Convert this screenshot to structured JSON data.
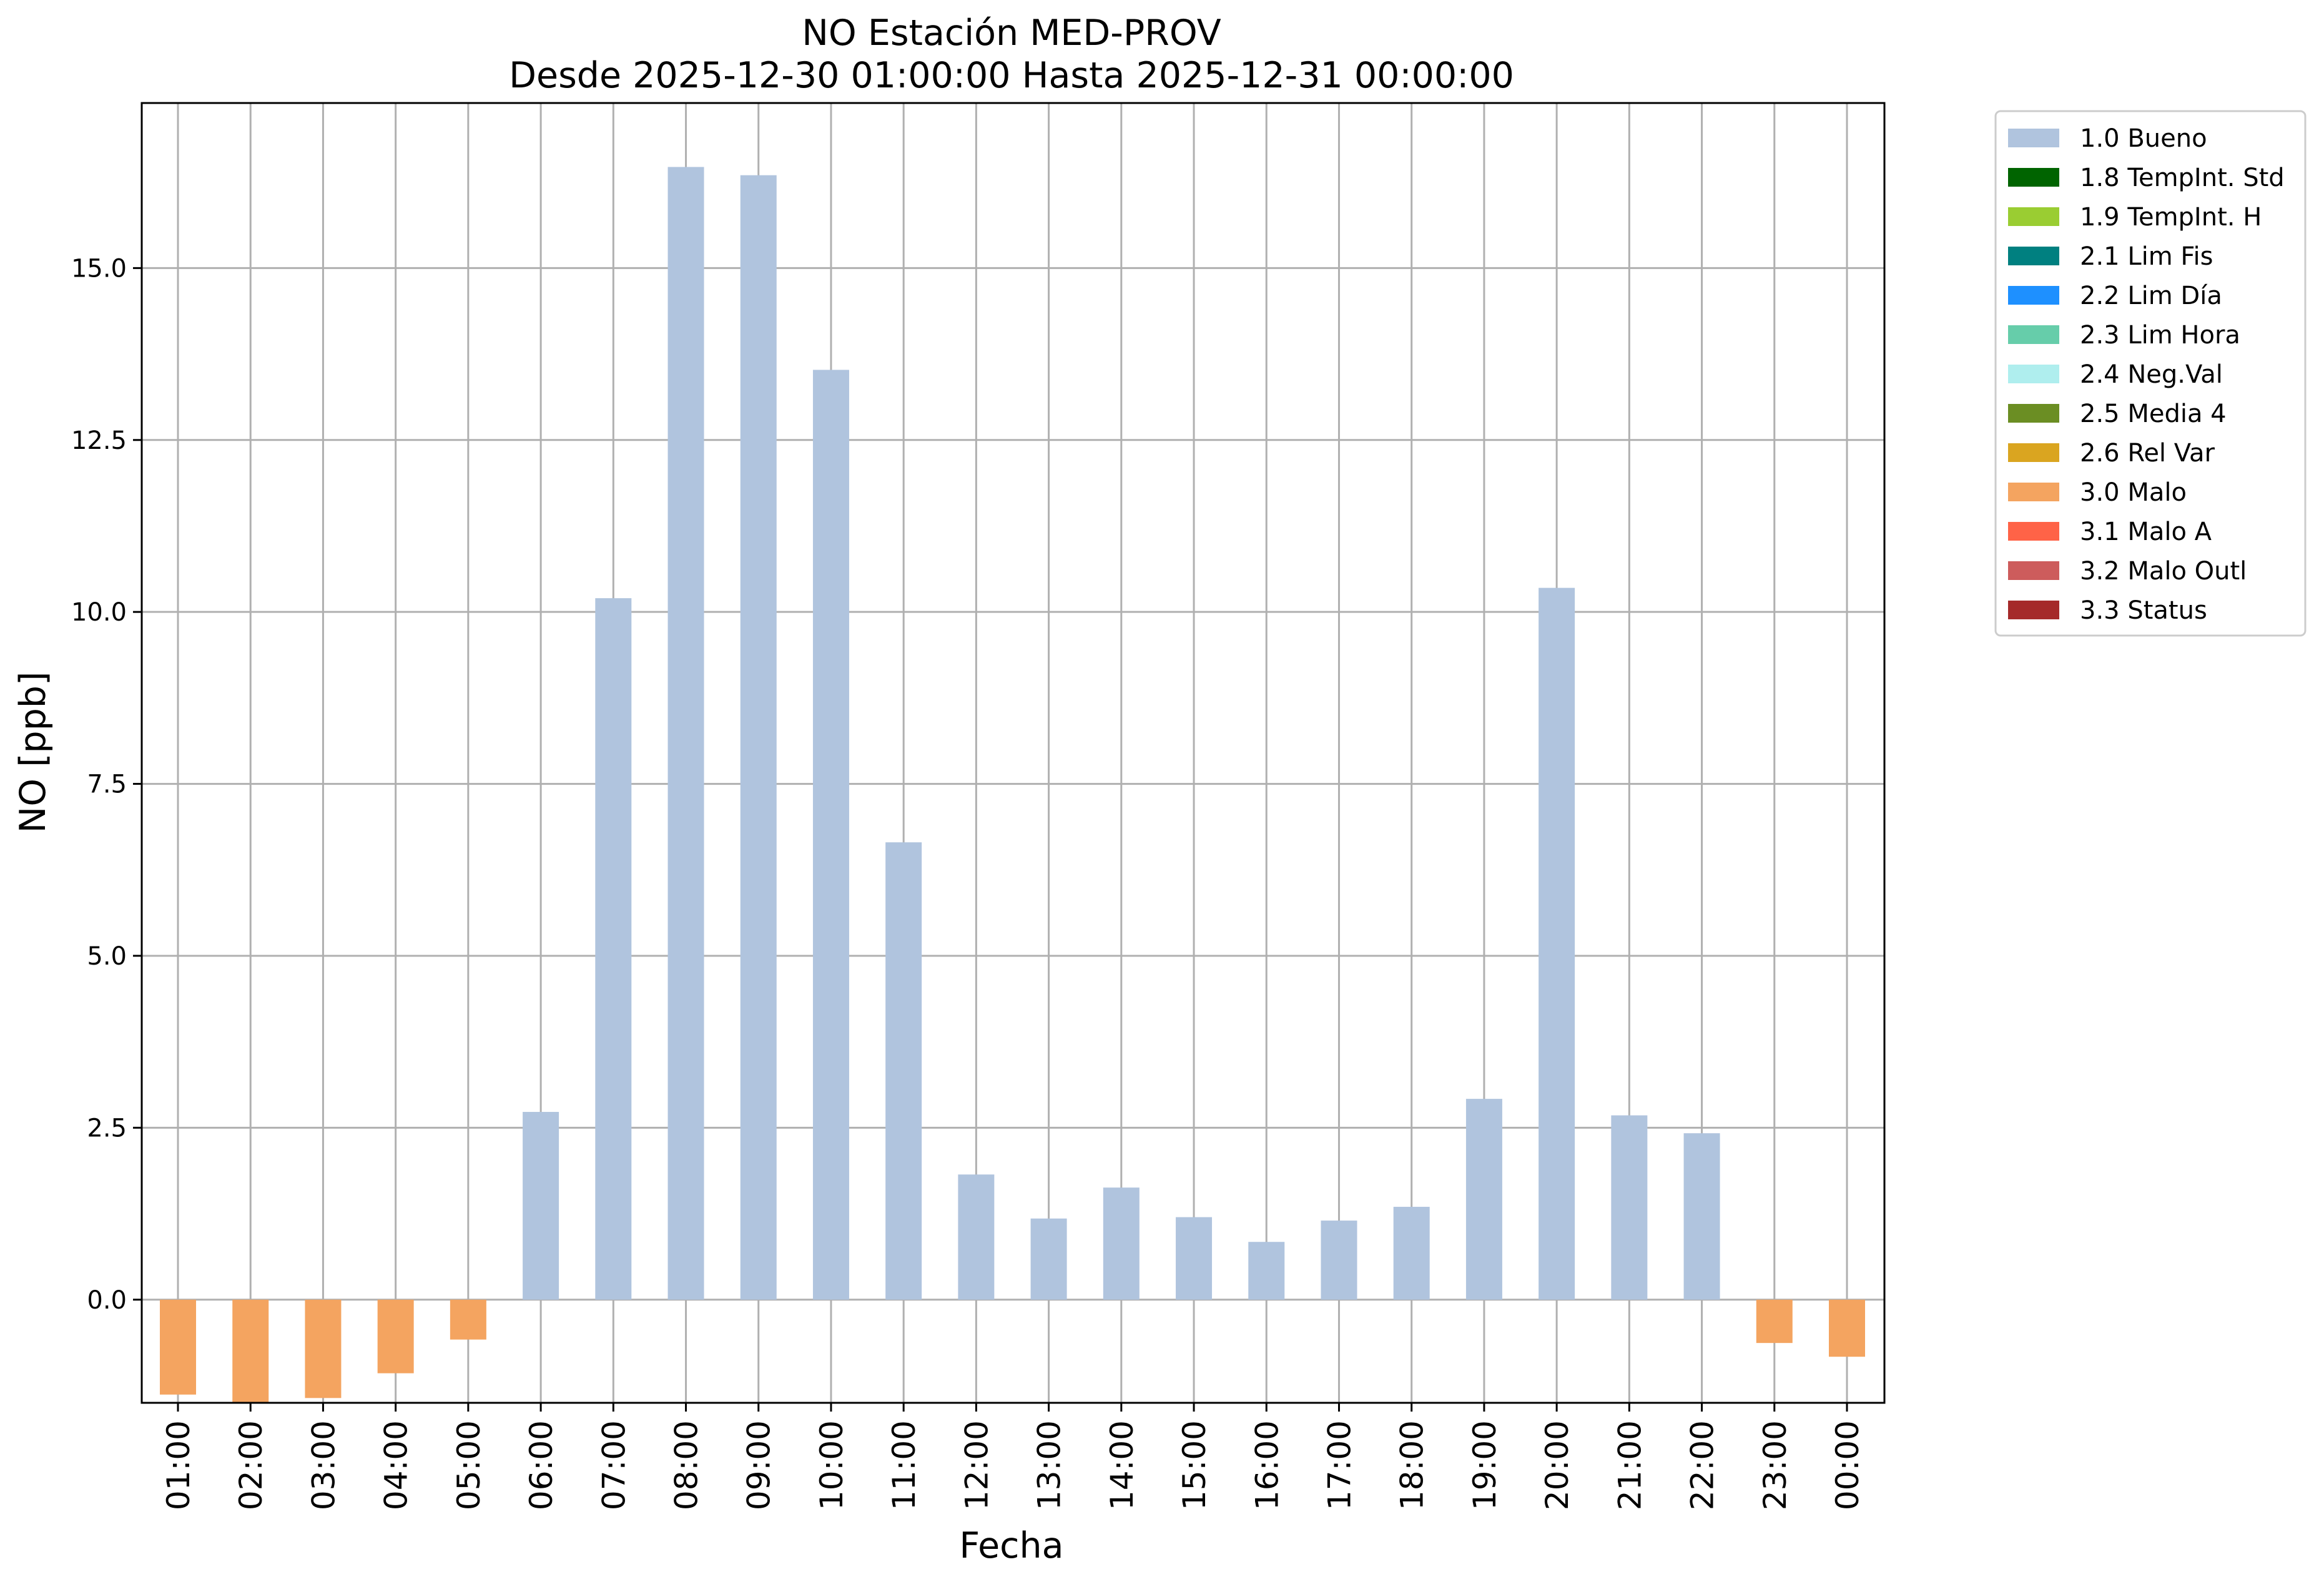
{
  "chart_data": {
    "type": "bar",
    "title": "NO Estación MED-PROV",
    "subtitle": "Desde 2025-12-30 01:00:00 Hasta 2025-12-31 00:00:00",
    "xlabel": "Fecha",
    "ylabel": "NO [ppb]",
    "ylim": [
      -1.5,
      17.4
    ],
    "yticks": [
      "0.0",
      "2.5",
      "5.0",
      "7.5",
      "10.0",
      "12.5",
      "15.0"
    ],
    "ytick_values": [
      0,
      2.5,
      5,
      7.5,
      10,
      12.5,
      15
    ],
    "grid": true,
    "legend_position": "outside upper right",
    "categories": [
      "01:00",
      "02:00",
      "03:00",
      "04:00",
      "05:00",
      "06:00",
      "07:00",
      "08:00",
      "09:00",
      "10:00",
      "11:00",
      "12:00",
      "13:00",
      "14:00",
      "15:00",
      "16:00",
      "17:00",
      "18:00",
      "19:00",
      "20:00",
      "21:00",
      "22:00",
      "23:00",
      "00:00"
    ],
    "values": [
      -1.38,
      -1.5,
      -1.43,
      -1.07,
      -0.58,
      2.73,
      10.2,
      16.47,
      16.35,
      13.52,
      6.65,
      1.82,
      1.18,
      1.63,
      1.2,
      0.84,
      1.15,
      1.35,
      2.92,
      10.35,
      2.68,
      2.42,
      -0.63,
      -0.83
    ],
    "flags": [
      "3.0",
      "3.0",
      "3.0",
      "3.0",
      "3.0",
      "1.0",
      "1.0",
      "1.0",
      "1.0",
      "1.0",
      "1.0",
      "1.0",
      "1.0",
      "1.0",
      "1.0",
      "1.0",
      "1.0",
      "1.0",
      "1.0",
      "1.0",
      "1.0",
      "1.0",
      "3.0",
      "3.0"
    ],
    "legend": [
      {
        "code": "1.0",
        "label": "1.0 Bueno",
        "color": "#b0c4de"
      },
      {
        "code": "1.8",
        "label": "1.8 TempInt. Std",
        "color": "#006400"
      },
      {
        "code": "1.9",
        "label": "1.9 TempInt. H",
        "color": "#9acd32"
      },
      {
        "code": "2.1",
        "label": "2.1 Lim Fis",
        "color": "#008080"
      },
      {
        "code": "2.2",
        "label": "2.2 Lim Día",
        "color": "#1e90ff"
      },
      {
        "code": "2.3",
        "label": "2.3 Lim Hora",
        "color": "#66cdaa"
      },
      {
        "code": "2.4",
        "label": "2.4 Neg.Val",
        "color": "#afeeee"
      },
      {
        "code": "2.5",
        "label": "2.5 Media 4",
        "color": "#6b8e23"
      },
      {
        "code": "2.6",
        "label": "2.6 Rel Var",
        "color": "#daa520"
      },
      {
        "code": "3.0",
        "label": "3.0 Malo",
        "color": "#f4a460"
      },
      {
        "code": "3.1",
        "label": "3.1 Malo A",
        "color": "#ff6347"
      },
      {
        "code": "3.2",
        "label": "3.2 Malo Outl",
        "color": "#cd5c5c"
      },
      {
        "code": "3.3",
        "label": "3.3 Status",
        "color": "#a52a2a"
      }
    ]
  }
}
